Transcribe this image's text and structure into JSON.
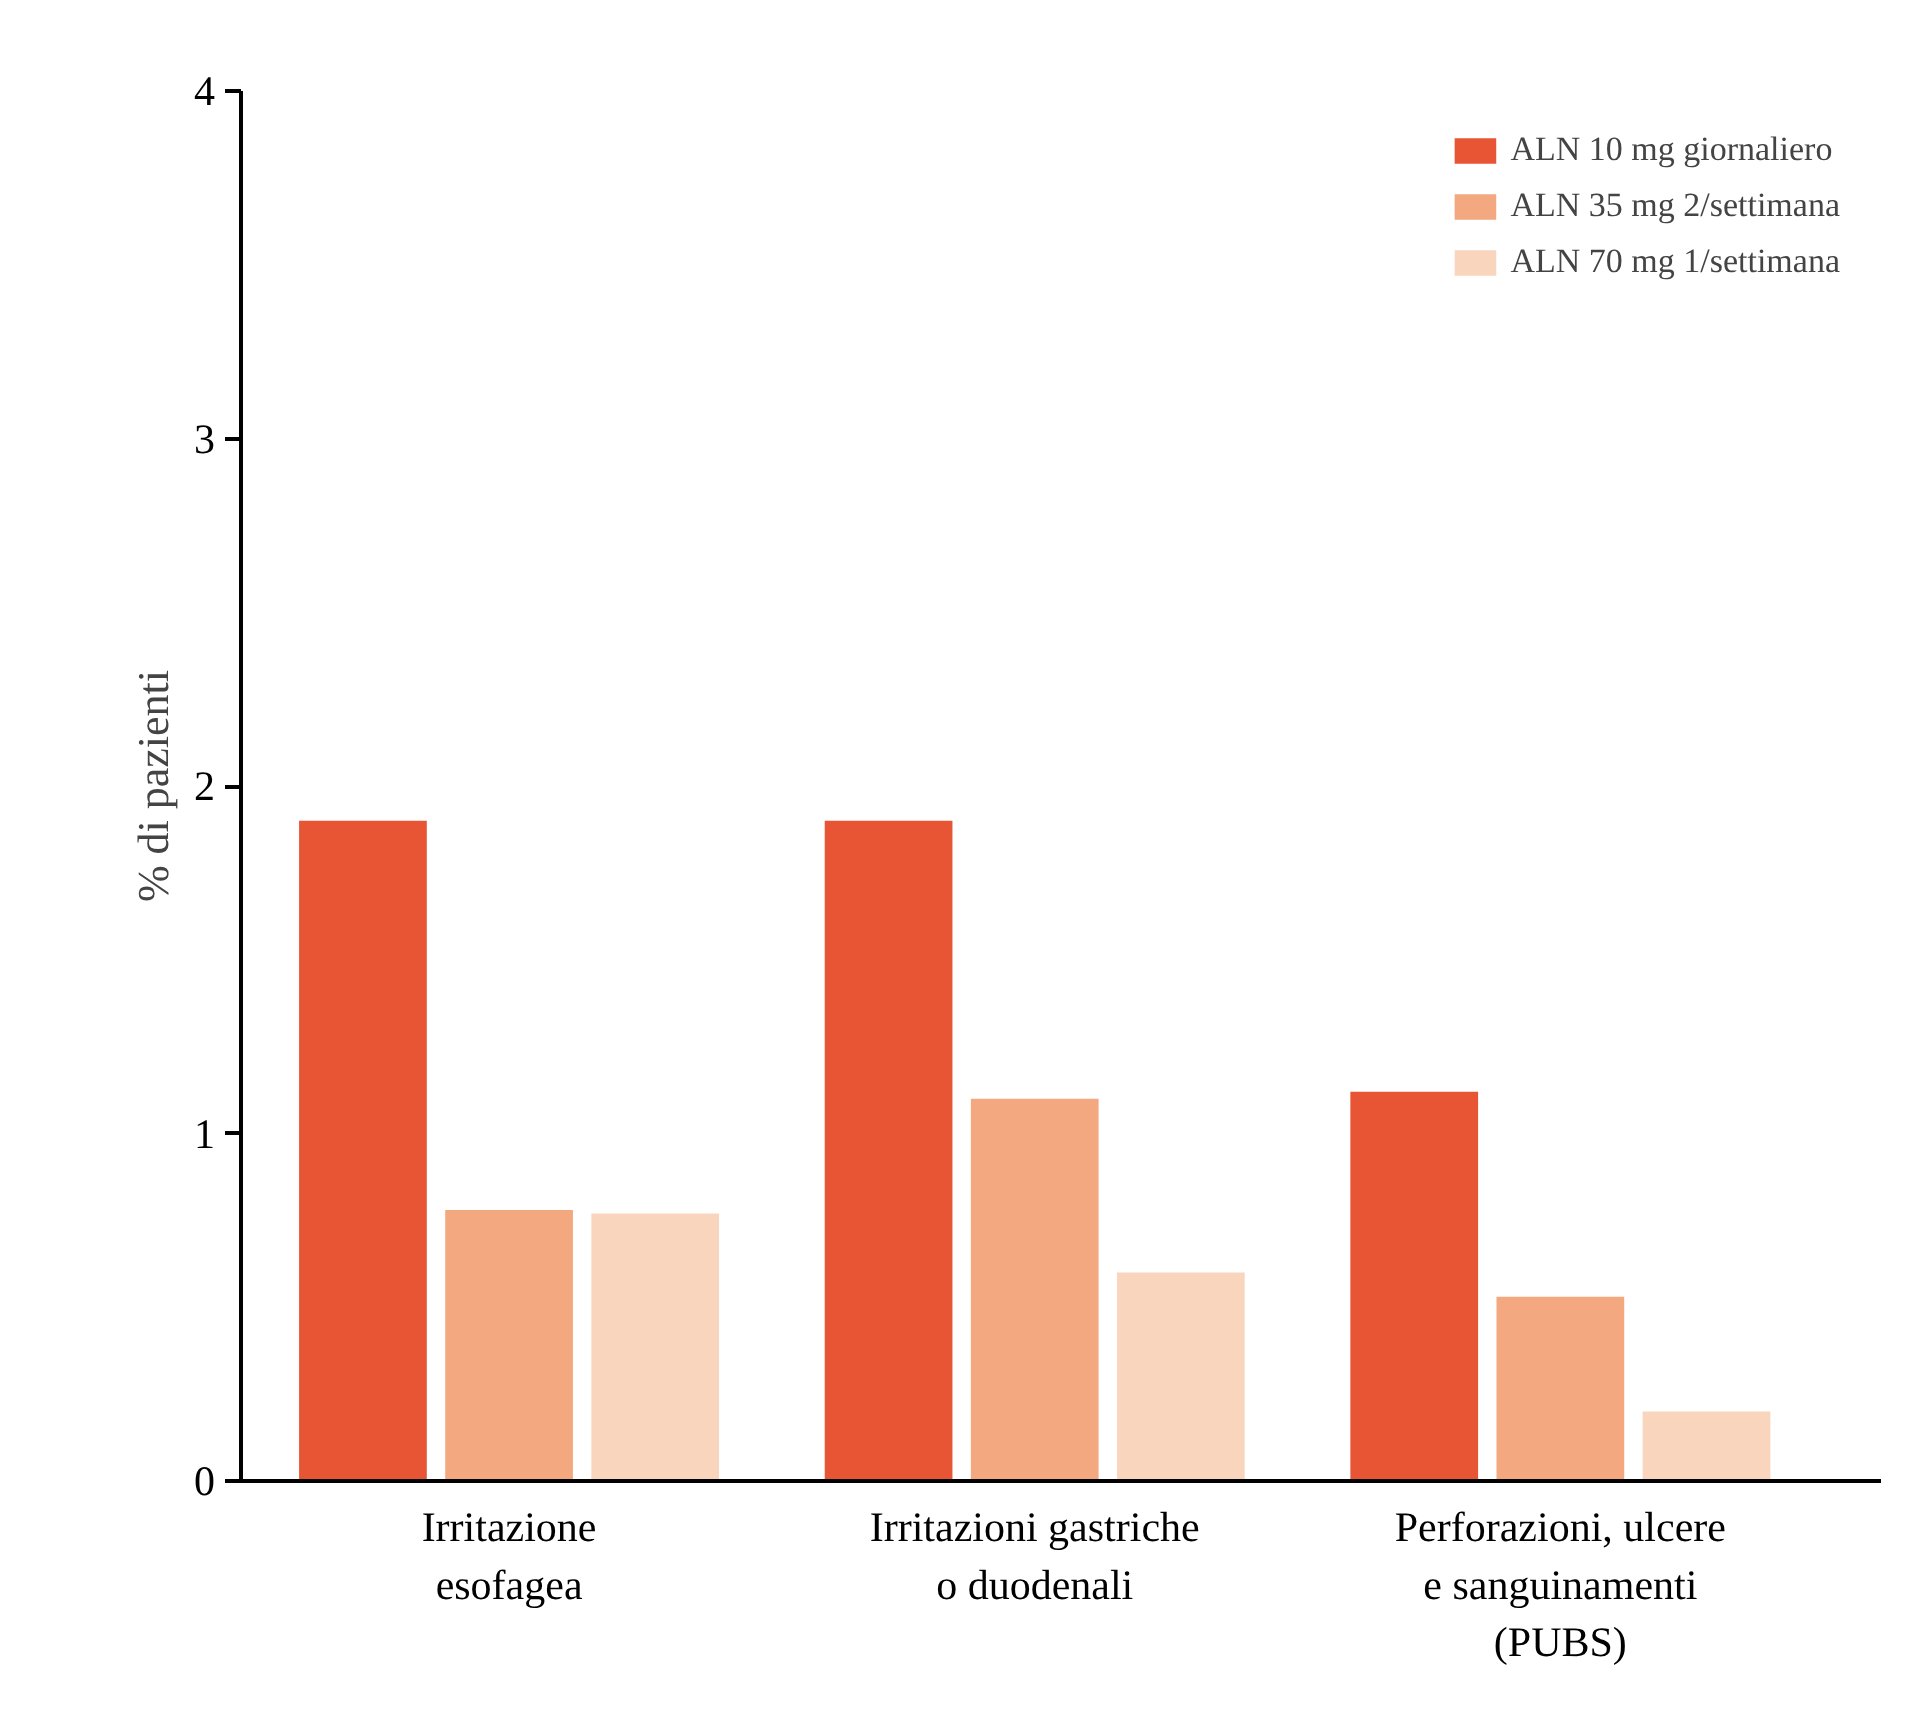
{
  "chart_data": {
    "type": "bar",
    "ylabel": "% di pazienti",
    "categories": [
      "Irritazione\nesofagea",
      "Irritazioni gastriche\no duodenali",
      "Perforazioni, ulcere\ne sanguinamenti\n(PUBS)"
    ],
    "series": [
      {
        "name": "ALN 10 mg giornaliero",
        "color": "#e85535",
        "values": [
          1.9,
          1.9,
          1.12
        ]
      },
      {
        "name": "ALN 35 mg 2/settimana",
        "color": "#f3a880",
        "values": [
          0.78,
          1.1,
          0.53
        ]
      },
      {
        "name": "ALN 70 mg 1/settimana",
        "color": "#fad5bd",
        "values": [
          0.77,
          0.6,
          0.2
        ]
      }
    ],
    "ylim": [
      0,
      4
    ],
    "yticks": [
      0,
      1,
      2,
      3,
      4
    ],
    "grid": false,
    "legend": "top right"
  }
}
